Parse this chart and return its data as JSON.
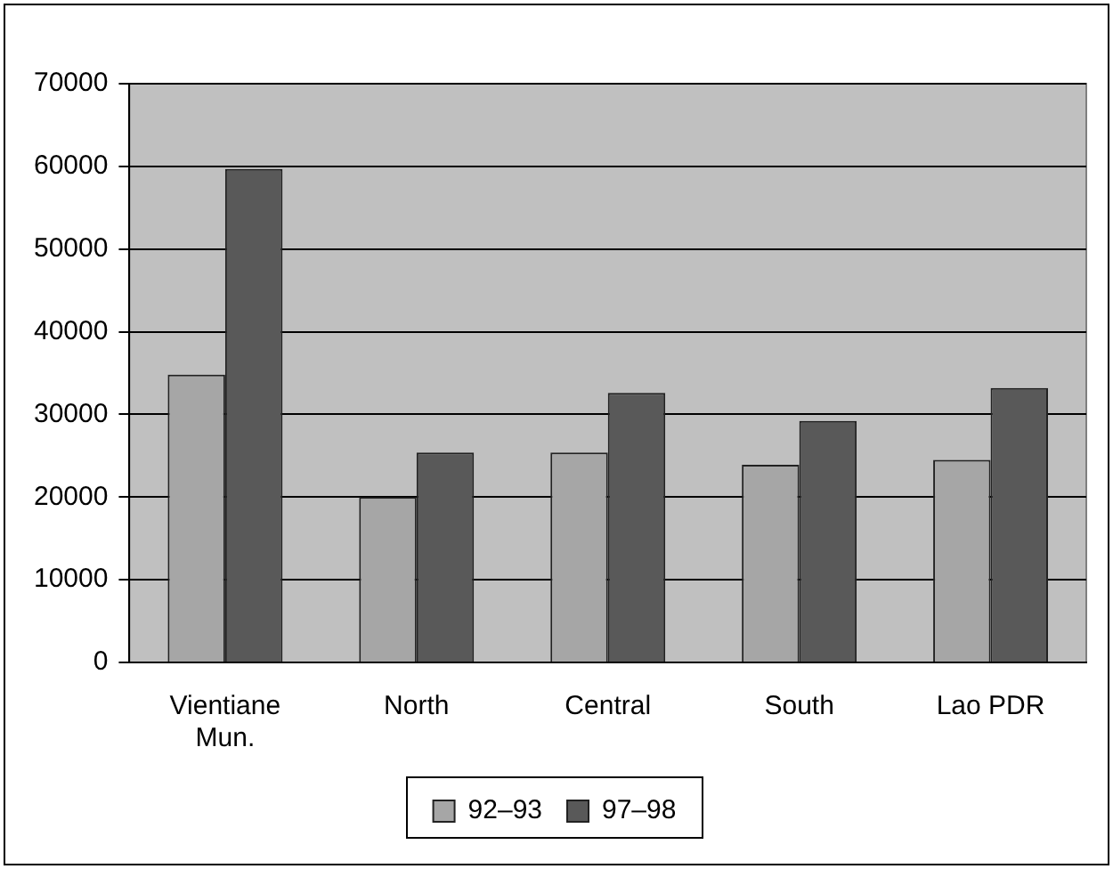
{
  "chart_data": {
    "type": "bar",
    "categories": [
      "Vientiane Mun.",
      "North",
      "Central",
      "South",
      "Lao PDR"
    ],
    "series": [
      {
        "name": "92–93",
        "color": "#a6a6a6",
        "values": [
          34800,
          20000,
          25400,
          23900,
          24500
        ]
      },
      {
        "name": "97–98",
        "color": "#595959",
        "values": [
          59700,
          25400,
          32600,
          29200,
          33200
        ]
      }
    ],
    "ylim": [
      0,
      70000
    ],
    "yticks": [
      0,
      10000,
      20000,
      30000,
      40000,
      50000,
      60000,
      70000
    ],
    "grid": "y",
    "legend": "bottom"
  }
}
